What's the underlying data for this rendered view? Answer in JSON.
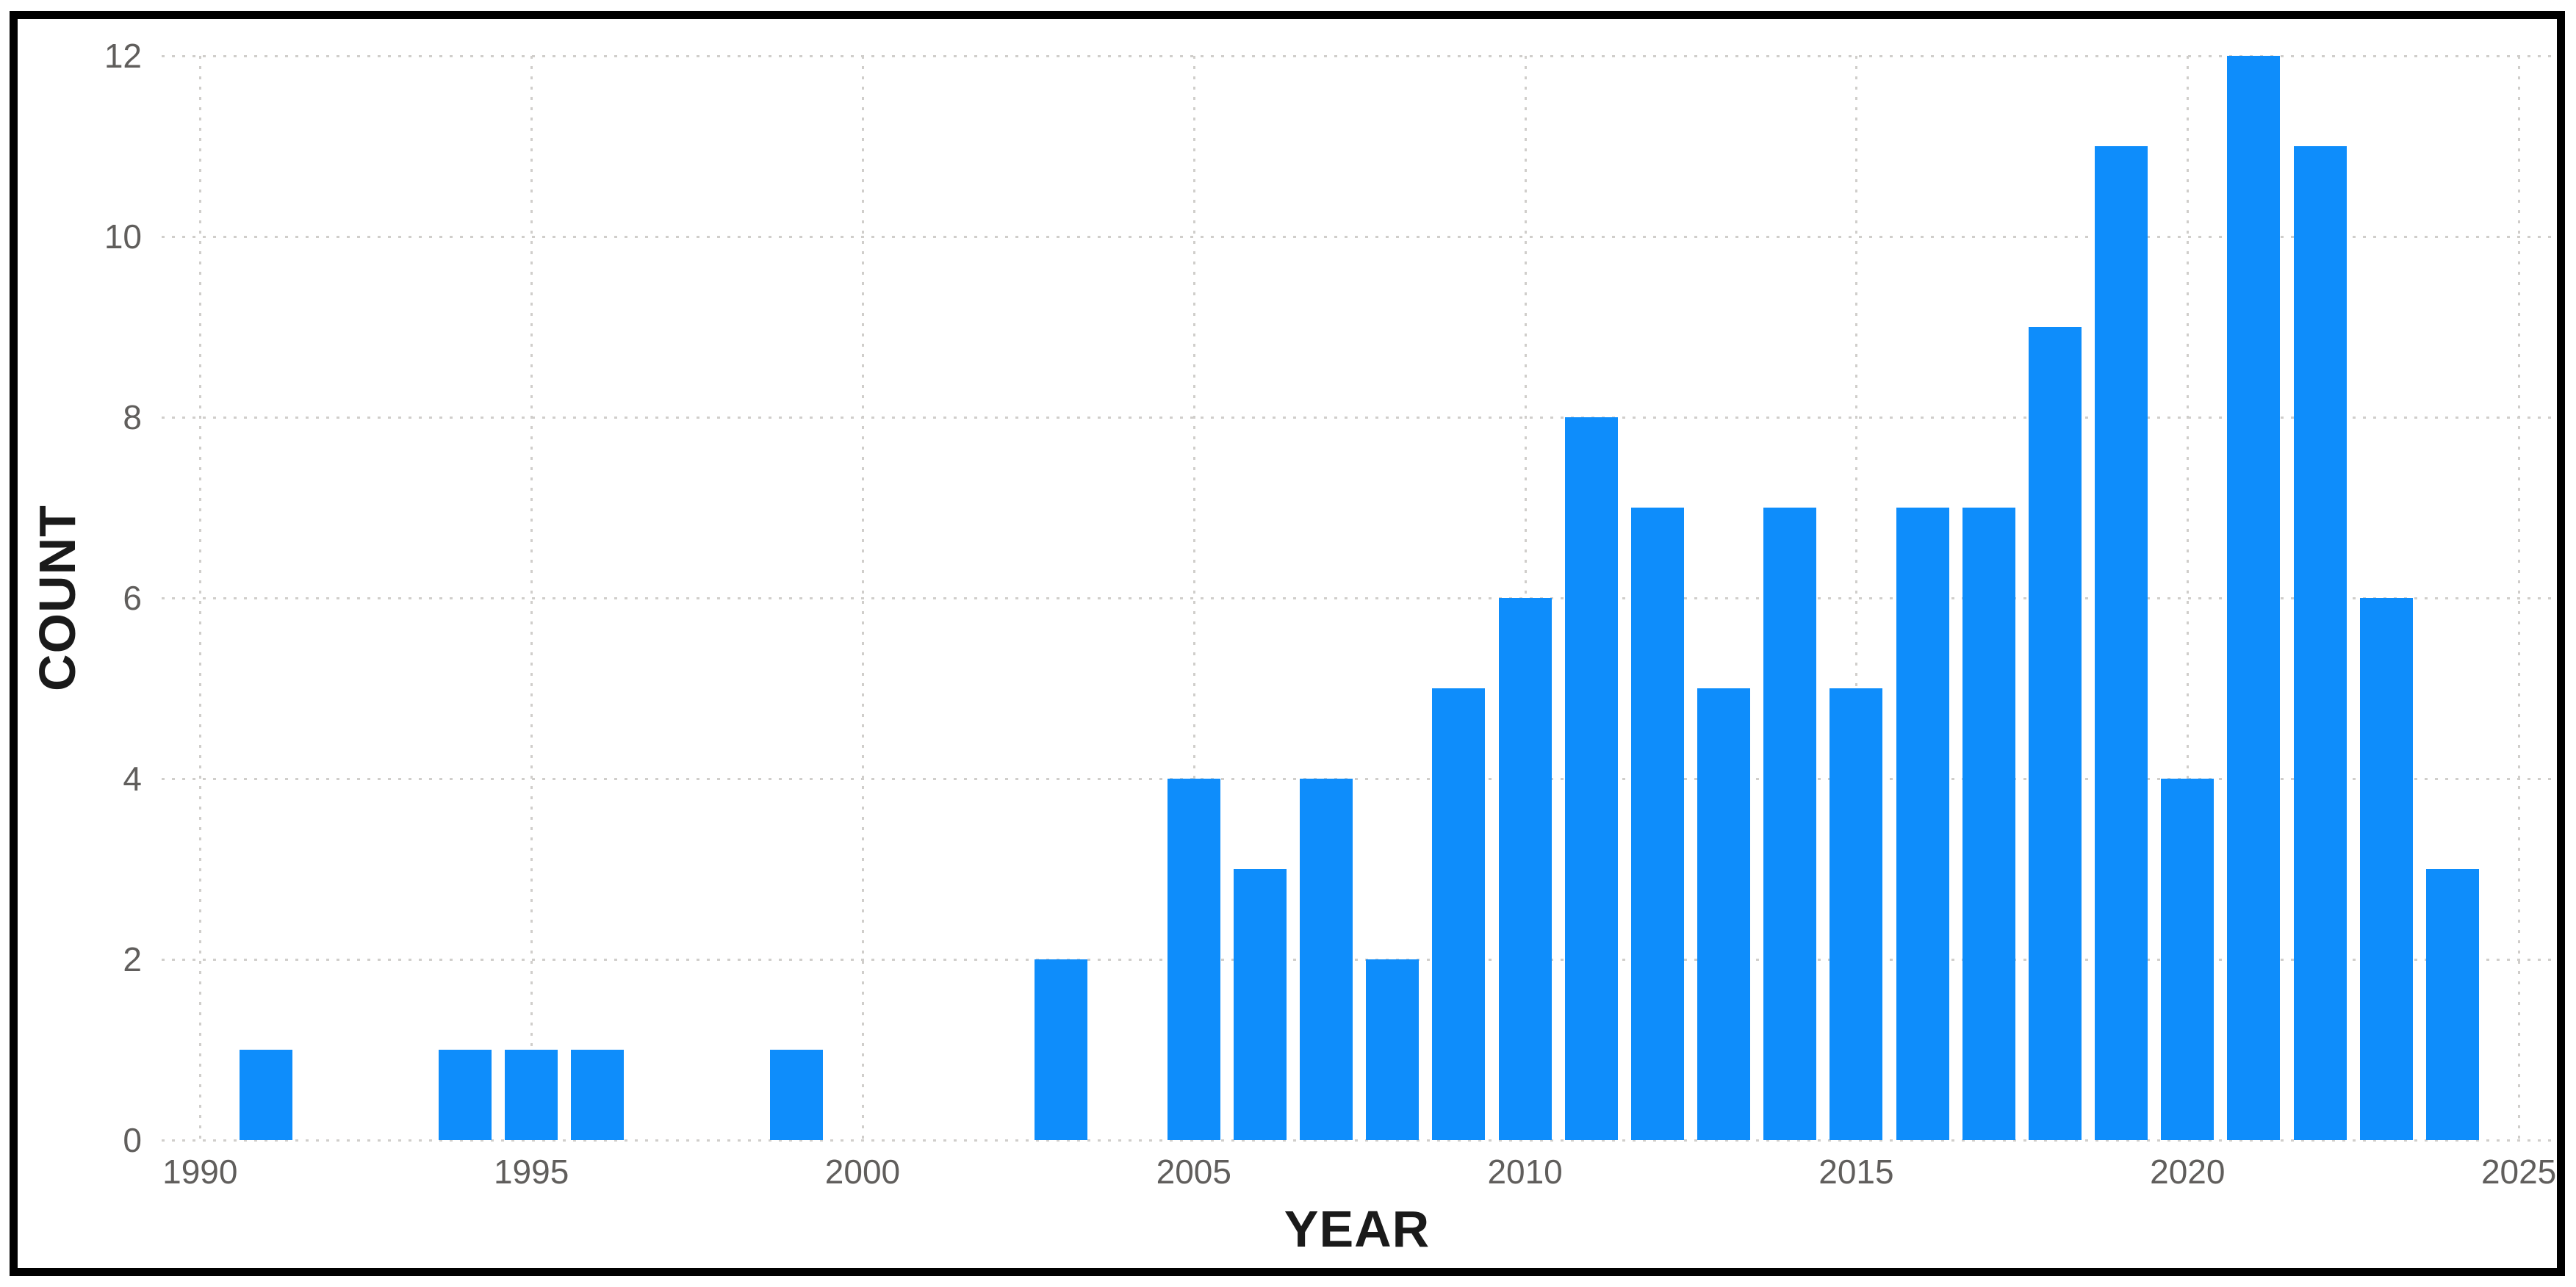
{
  "chart_data": {
    "type": "bar",
    "title": "",
    "xlabel": "YEAR",
    "ylabel": "COUNT",
    "categories": [
      1991,
      1994,
      1995,
      1996,
      1999,
      2003,
      2005,
      2006,
      2007,
      2008,
      2009,
      2010,
      2011,
      2012,
      2013,
      2014,
      2015,
      2016,
      2017,
      2018,
      2019,
      2020,
      2021,
      2022,
      2023,
      2024
    ],
    "values": [
      1,
      1,
      1,
      1,
      1,
      2,
      4,
      3,
      4,
      2,
      5,
      6,
      8,
      7,
      5,
      7,
      5,
      7,
      7,
      9,
      11,
      4,
      12,
      11,
      6,
      3
    ],
    "x_ticks": [
      1990,
      1995,
      2000,
      2005,
      2010,
      2015,
      2020,
      2025
    ],
    "y_ticks": [
      0,
      2,
      4,
      6,
      8,
      10,
      12
    ],
    "xlim": [
      1989.42,
      2025.52
    ],
    "ylim": [
      0,
      12
    ],
    "grid": "dotted",
    "legend": "none",
    "colors": {
      "bar": "#0E8DFB",
      "gridline": "#D0CECB",
      "tick_label": "#605E5C",
      "axis_title": "#1A1A1A",
      "frame_border": "#000000",
      "background": "#FFFFFF"
    }
  }
}
